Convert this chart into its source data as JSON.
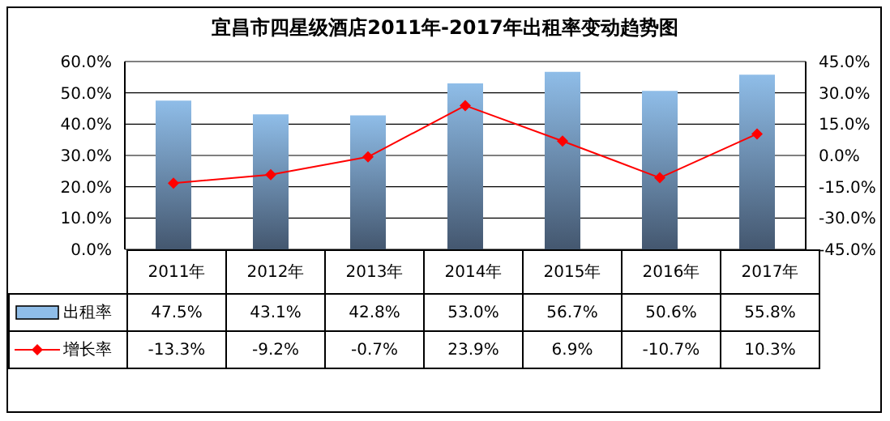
{
  "chart_data": {
    "type": "bar",
    "title": "宜昌市四星级酒店2011年-2017年出租率变动趋势图",
    "categories": [
      "2011年",
      "2012年",
      "2013年",
      "2014年",
      "2015年",
      "2016年",
      "2017年"
    ],
    "series": [
      {
        "name": "出租率",
        "color": "#8fbde8",
        "values": [
          47.5,
          43.1,
          42.8,
          53.0,
          56.7,
          50.6,
          55.8
        ],
        "value_labels": [
          "47.5%",
          "43.1%",
          "42.8%",
          "53.0%",
          "56.7%",
          "50.6%",
          "55.8%"
        ]
      },
      {
        "name": "增长率",
        "type": "line",
        "axis": "y2",
        "color": "#ff0000",
        "marker": "diamond",
        "values": [
          -13.3,
          -9.2,
          -0.7,
          23.9,
          6.9,
          -10.7,
          10.3
        ],
        "value_labels": [
          "-13.3%",
          "-9.2%",
          "-0.7%",
          "23.9%",
          "6.9%",
          "-10.7%",
          "10.3%"
        ]
      }
    ],
    "ylim": [
      0,
      60
    ],
    "yticks": [
      {
        "value": 0,
        "label": "0.0%"
      },
      {
        "value": 10,
        "label": "10.0%"
      },
      {
        "value": 20,
        "label": "20.0%"
      },
      {
        "value": 30,
        "label": "30.0%"
      },
      {
        "value": 40,
        "label": "40.0%"
      },
      {
        "value": 50,
        "label": "50.0%"
      },
      {
        "value": 60,
        "label": "60.0%"
      }
    ],
    "y2lim": [
      -45,
      45
    ],
    "y2ticks": [
      {
        "value": -45,
        "label": "-45.0%"
      },
      {
        "value": -30,
        "label": "-30.0%"
      },
      {
        "value": -15,
        "label": "-15.0%"
      },
      {
        "value": 0,
        "label": "0.0%"
      },
      {
        "value": 15,
        "label": "15.0%"
      },
      {
        "value": 30,
        "label": "30.0%"
      },
      {
        "value": 45,
        "label": "45.0%"
      }
    ],
    "grid": "y",
    "legend": "bottom"
  }
}
